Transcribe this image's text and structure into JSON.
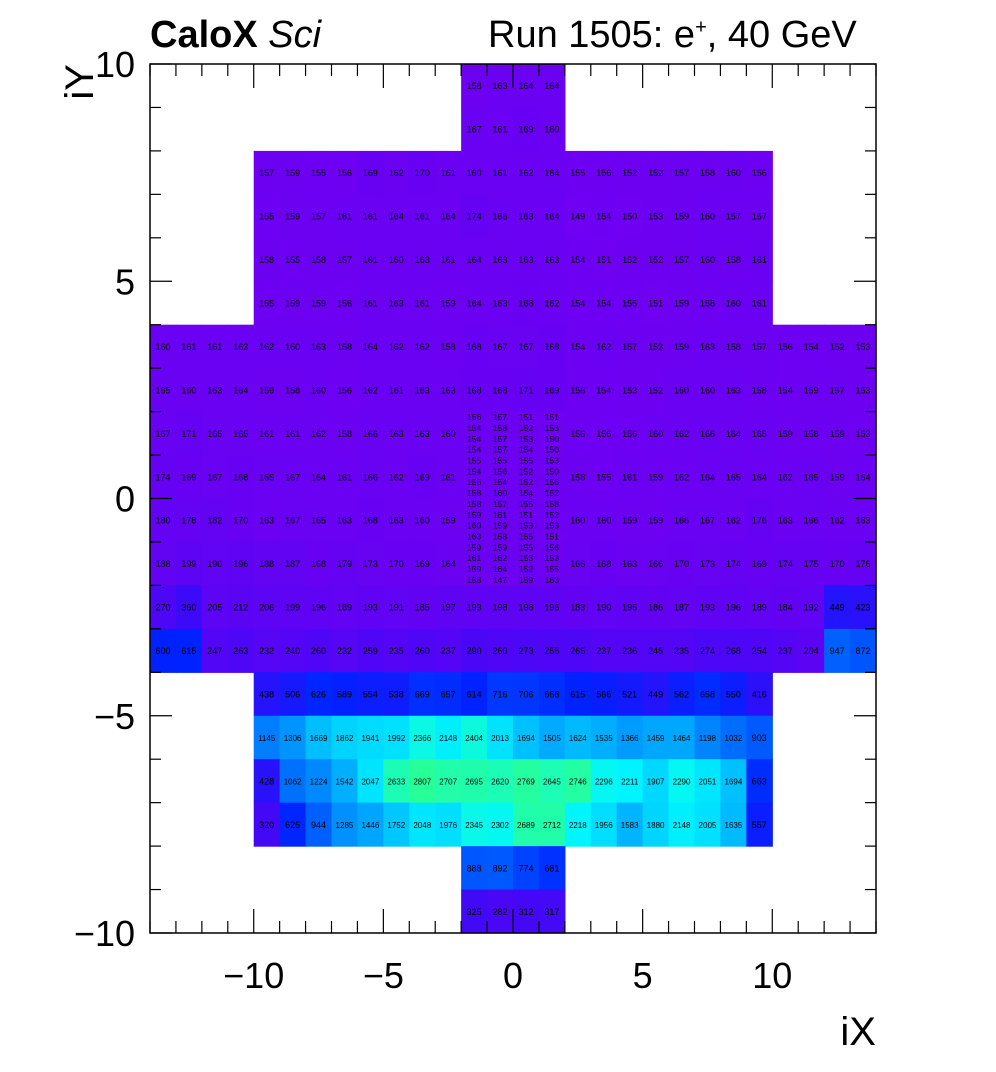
{
  "header": {
    "experiment": "CaloX",
    "experiment_tag": "Sci",
    "run_prefix": "Run 1505: e",
    "run_charge": "+",
    "run_suffix": ", 40 GeV"
  },
  "chart_data": {
    "type": "heatmap",
    "xlabel": "iX",
    "ylabel": "iY",
    "xlim": [
      -14,
      14
    ],
    "ylim": [
      -10,
      10
    ],
    "xticks": [
      -10,
      -5,
      0,
      5,
      10
    ],
    "yticks": [
      -10,
      -5,
      0,
      5,
      10
    ],
    "xtick_labels": [
      "−10",
      "−5",
      "0",
      "5",
      "10"
    ],
    "ytick_labels": [
      "−10",
      "−5",
      "0",
      "5",
      "10"
    ],
    "colormap": "ROOT kBird-like: violet #6f00f2 (low) -> blue #0022ff -> sky #0099ff -> cyan #00ffff -> green (high)",
    "blocks": [
      {
        "region": "top-tower",
        "x0": -2,
        "x1": 2,
        "y0": 8,
        "y1": 10,
        "values": [
          [
            158,
            163,
            164,
            164
          ],
          [
            167,
            161,
            169,
            160
          ]
        ]
      },
      {
        "region": "upper",
        "x0": -10,
        "x1": 10,
        "y0": 4,
        "y1": 8,
        "values": [
          [
            157,
            159,
            155,
            156,
            169,
            162,
            170,
            161,
            160,
            161,
            162,
            164,
            155,
            156,
            152,
            152,
            157,
            158,
            160,
            156
          ],
          [
            155,
            159,
            157,
            161,
            161,
            164,
            161,
            164,
            174,
            166,
            163,
            164,
            149,
            154,
            150,
            153,
            159,
            160,
            157,
            157
          ],
          [
            158,
            155,
            158,
            157,
            161,
            160,
            163,
            161,
            164,
            163,
            163,
            163,
            154,
            151,
            152,
            152,
            157,
            160,
            158,
            161
          ],
          [
            155,
            159,
            159,
            156,
            161,
            163,
            161,
            159,
            164,
            163,
            168,
            162,
            154,
            154,
            155,
            151,
            159,
            158,
            160,
            161
          ]
        ]
      },
      {
        "region": "middle",
        "x0": -14,
        "x1": 14,
        "y0": -4,
        "y1": 4,
        "values": [
          [
            160,
            161,
            161,
            163,
            162,
            160,
            163,
            158,
            164,
            162,
            162,
            158,
            168,
            167,
            167,
            168,
            154,
            162,
            157,
            153,
            159,
            163,
            158,
            157,
            156,
            154,
            152,
            153
          ],
          [
            165,
            160,
            163,
            164,
            159,
            158,
            160,
            156,
            162,
            161,
            163,
            163,
            168,
            168,
            171,
            169,
            156,
            154,
            153,
            152,
            160,
            160,
            163,
            158,
            154,
            159,
            157,
            153
          ],
          [
            167,
            171,
            165,
            165,
            161,
            161,
            162,
            158,
            166,
            163,
            163,
            160,
            null,
            null,
            null,
            null,
            156,
            156,
            156,
            160,
            162,
            166,
            164,
            165,
            159,
            158,
            159,
            153
          ],
          [
            174,
            169,
            167,
            168,
            165,
            167,
            164,
            161,
            166,
            162,
            169,
            161,
            null,
            null,
            null,
            null,
            158,
            155,
            161,
            159,
            162,
            164,
            165,
            164,
            162,
            165,
            159,
            164
          ],
          [
            180,
            178,
            182,
            170,
            163,
            167,
            165,
            163,
            168,
            163,
            160,
            159,
            null,
            null,
            null,
            null,
            160,
            160,
            159,
            159,
            166,
            167,
            162,
            176,
            163,
            166,
            162,
            163
          ],
          [
            188,
            199,
            190,
            196,
            188,
            187,
            168,
            179,
            173,
            170,
            169,
            164,
            null,
            null,
            null,
            null,
            166,
            168,
            163,
            166,
            170,
            173,
            174,
            169,
            174,
            175,
            170,
            176
          ],
          [
            270,
            360,
            205,
            212,
            206,
            199,
            196,
            189,
            193,
            191,
            185,
            197,
            193,
            198,
            198,
            196,
            183,
            190,
            195,
            186,
            187,
            193,
            196,
            189,
            184,
            192,
            449,
            423
          ],
          [
            600,
            615,
            247,
            263,
            232,
            240,
            260,
            232,
            259,
            235,
            260,
            237,
            290,
            260,
            273,
            255,
            265,
            237,
            236,
            245,
            235,
            274,
            268,
            254,
            237,
            204,
            947,
            872
          ]
        ]
      },
      {
        "region": "lower",
        "x0": -10,
        "x1": 10,
        "y0": -8,
        "y1": -4,
        "values": [
          [
            438,
            506,
            626,
            589,
            554,
            538,
            669,
            657,
            614,
            716,
            706,
            668,
            615,
            566,
            521,
            449,
            562,
            658,
            550,
            416
          ],
          [
            1145,
            1306,
            1669,
            1862,
            1941,
            1992,
            2366,
            2148,
            2404,
            2013,
            1694,
            1505,
            1624,
            1535,
            1366,
            1459,
            1464,
            1198,
            1032,
            903
          ],
          [
            428,
            1062,
            1224,
            1542,
            2047,
            2633,
            2807,
            2707,
            2695,
            2620,
            2769,
            2645,
            2746,
            2296,
            2211,
            1907,
            2290,
            2051,
            1694,
            663
          ],
          [
            320,
            625,
            944,
            1285,
            1446,
            1752,
            2048,
            1976,
            2345,
            2302,
            2689,
            2712,
            2218,
            1956,
            1583,
            1880,
            2148,
            2005,
            1635,
            557
          ]
        ]
      },
      {
        "region": "bottom-tower",
        "x0": -2,
        "x1": 2,
        "y0": -10,
        "y1": -8,
        "values": [
          [
            888,
            892,
            774,
            681
          ],
          [
            325,
            282,
            312,
            317
          ]
        ]
      },
      {
        "region": "center-fine",
        "x0": -2,
        "x1": 2,
        "y0": -2,
        "y1": 2,
        "values": [
          [
            156,
            157,
            151,
            151
          ],
          [
            154,
            158,
            152,
            153
          ],
          [
            154,
            157,
            153,
            150
          ],
          [
            154,
            157,
            154,
            150
          ],
          [
            155,
            155,
            155,
            153
          ],
          [
            154,
            156,
            152,
            150
          ],
          [
            156,
            154,
            152,
            156
          ],
          [
            158,
            160,
            154,
            152
          ],
          [
            158,
            157,
            155,
            158
          ],
          [
            159,
            161,
            151,
            152
          ],
          [
            160,
            159,
            153,
            153
          ],
          [
            163,
            158,
            155,
            151
          ],
          [
            159,
            159,
            155,
            156
          ],
          [
            161,
            162,
            153,
            153
          ],
          [
            159,
            164,
            152,
            155
          ],
          [
            158,
            147,
            159,
            163
          ]
        ]
      }
    ]
  }
}
